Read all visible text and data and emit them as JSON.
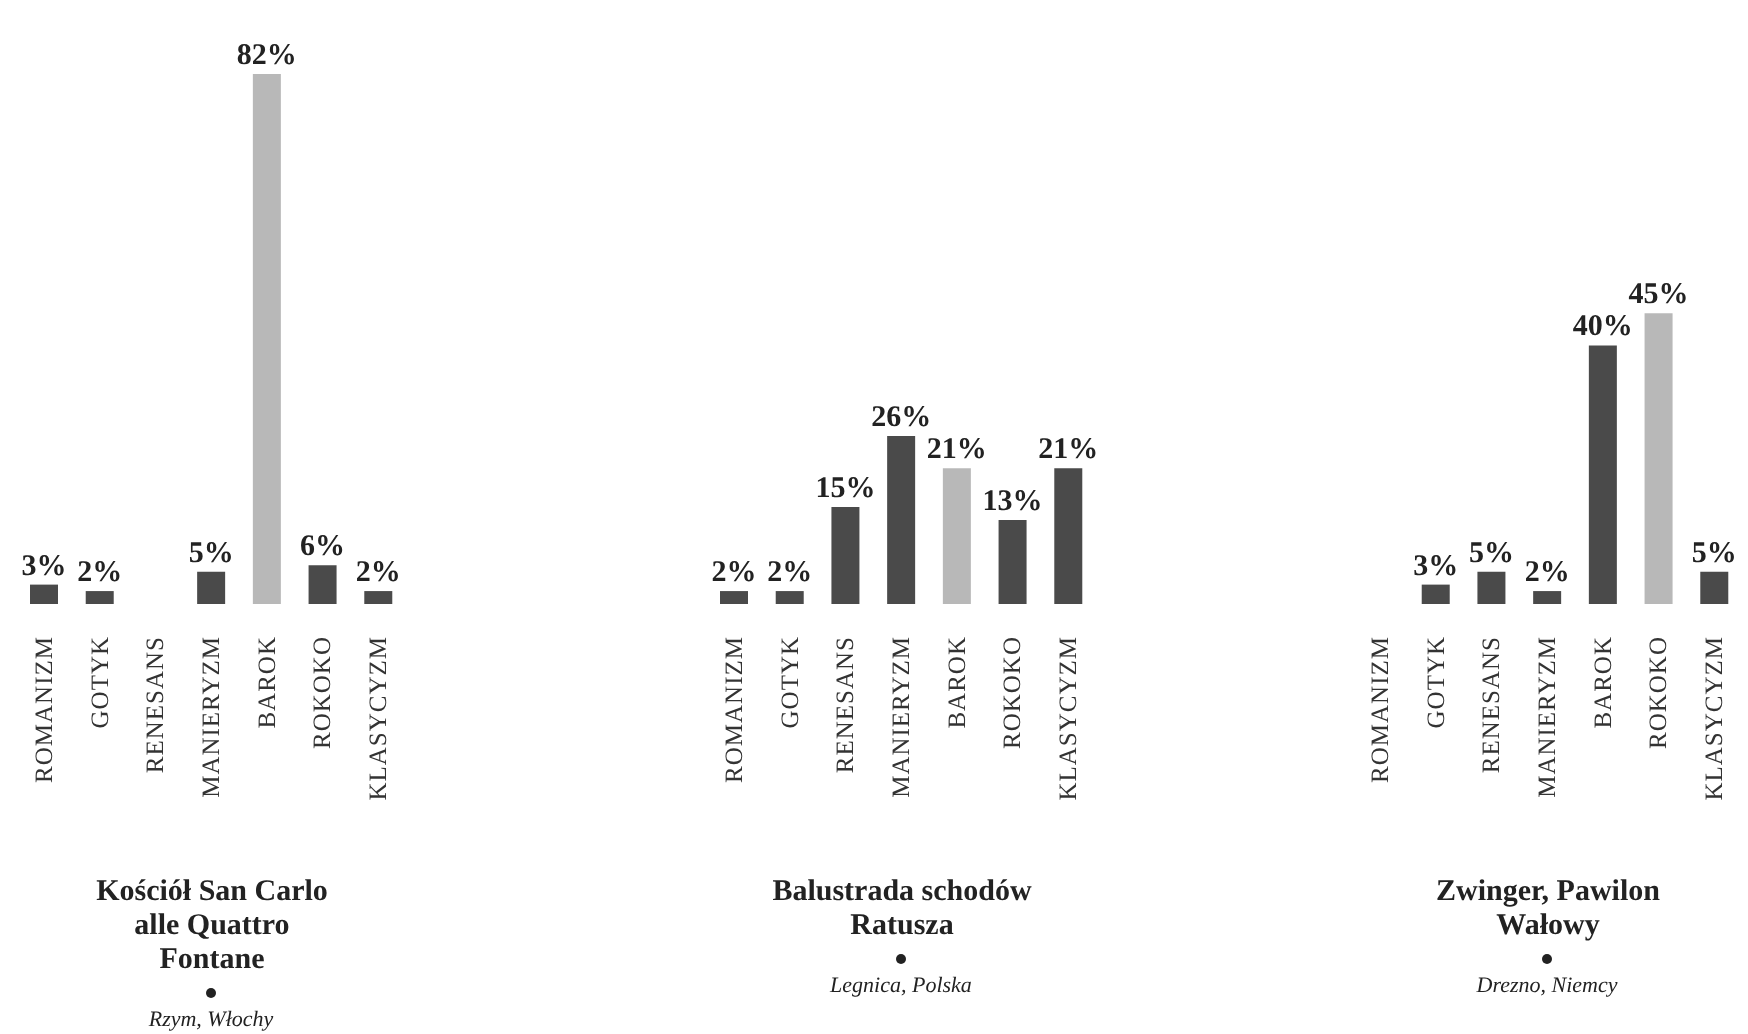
{
  "chart_data": [
    {
      "type": "bar",
      "title": "Kościół San Carlo alle Quattro Fontane",
      "subtitle": "Rzym, Włochy",
      "categories": [
        "ROMANIZM",
        "GOTYK",
        "RENESANS",
        "MANIERYZM",
        "BAROK",
        "ROKOKO",
        "KLASYCYZM"
      ],
      "values": [
        3,
        2,
        null,
        5,
        82,
        6,
        2
      ],
      "value_labels": [
        "3%",
        "2%",
        null,
        "5%",
        "82%",
        "6%",
        "2%"
      ],
      "colors": [
        "#4a4a4a",
        "#4a4a4a",
        "#4a4a4a",
        "#4a4a4a",
        "#b8b8b8",
        "#4a4a4a",
        "#4a4a4a"
      ],
      "grid": false,
      "legend": false
    },
    {
      "type": "bar",
      "title": "Balustrada schodów Ratusza",
      "subtitle": "Legnica, Polska",
      "categories": [
        "ROMANIZM",
        "GOTYK",
        "RENESANS",
        "MANIERYZM",
        "BAROK",
        "ROKOKO",
        "KLASYCYZM"
      ],
      "values": [
        2,
        2,
        15,
        26,
        21,
        13,
        21
      ],
      "value_labels": [
        "2%",
        "2%",
        "15%",
        "26%",
        "21%",
        "13%",
        "21%"
      ],
      "colors": [
        "#4a4a4a",
        "#4a4a4a",
        "#4a4a4a",
        "#4a4a4a",
        "#b8b8b8",
        "#4a4a4a",
        "#4a4a4a"
      ],
      "grid": false,
      "legend": false
    },
    {
      "type": "bar",
      "title": "Zwinger, Pawilon Wałowy",
      "subtitle": "Drezno, Niemcy",
      "categories": [
        "ROMANIZM",
        "GOTYK",
        "RENESANS",
        "MANIERYZM",
        "BAROK",
        "ROKOKO",
        "KLASYCYZM"
      ],
      "values": [
        null,
        3,
        5,
        2,
        40,
        45,
        5
      ],
      "value_labels": [
        null,
        "3%",
        "5%",
        "2%",
        "40%",
        "45%",
        "5%"
      ],
      "colors": [
        "#4a4a4a",
        "#4a4a4a",
        "#4a4a4a",
        "#4a4a4a",
        "#4a4a4a",
        "#b8b8b8",
        "#4a4a4a"
      ],
      "grid": false,
      "legend": false
    }
  ]
}
